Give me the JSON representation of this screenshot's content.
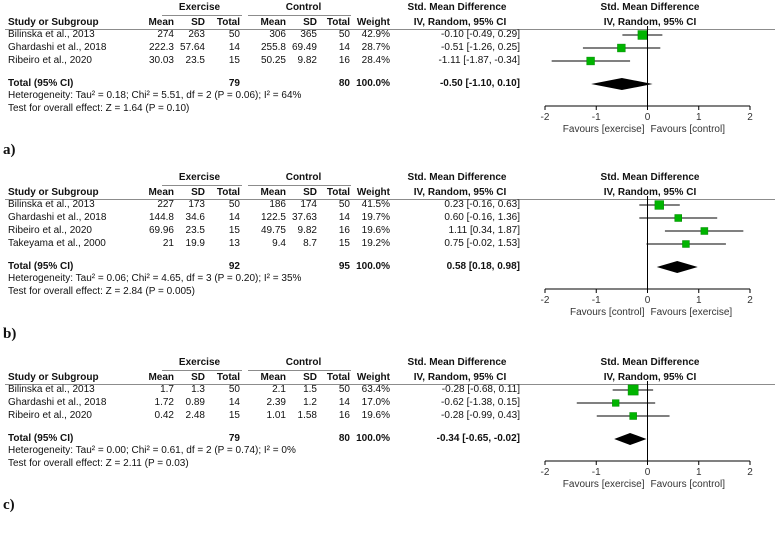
{
  "chart_data": [
    {
      "type": "forest",
      "panel_label": "a)",
      "headers": {
        "group1": "Exercise",
        "group2": "Control",
        "study": "Study or Subgroup",
        "mean": "Mean",
        "sd": "SD",
        "total": "Total",
        "weight": "Weight",
        "smd": "Std. Mean Difference",
        "method": "IV, Random, 95% CI",
        "plot_title": "Std. Mean Difference",
        "plot_method": "IV, Random, 95% CI"
      },
      "studies": [
        {
          "name": "Bilinska et al., 2013",
          "e_mean": "274",
          "e_sd": "263",
          "e_total": "50",
          "c_mean": "306",
          "c_sd": "365",
          "c_total": "50",
          "weight": "42.9%",
          "ci_text": "-0.10 [-0.49, 0.29]",
          "est": -0.1,
          "lo": -0.49,
          "hi": 0.29,
          "w": 42.9
        },
        {
          "name": "Ghardashi et al., 2018",
          "e_mean": "222.3",
          "e_sd": "57.64",
          "e_total": "14",
          "c_mean": "255.8",
          "c_sd": "69.49",
          "c_total": "14",
          "weight": "28.7%",
          "ci_text": "-0.51 [-1.26, 0.25]",
          "est": -0.51,
          "lo": -1.26,
          "hi": 0.25,
          "w": 28.7
        },
        {
          "name": "Ribeiro et al., 2020",
          "e_mean": "30.03",
          "e_sd": "23.5",
          "e_total": "15",
          "c_mean": "50.25",
          "c_sd": "9.82",
          "c_total": "16",
          "weight": "28.4%",
          "ci_text": "-1.11 [-1.87, -0.34]",
          "est": -1.11,
          "lo": -1.87,
          "hi": -0.34,
          "w": 28.4
        }
      ],
      "total": {
        "label": "Total (95% CI)",
        "e_total": "79",
        "c_total": "80",
        "weight": "100.0%",
        "ci_text": "-0.50 [-1.10, 0.10]",
        "est": -0.5,
        "lo": -1.1,
        "hi": 0.1
      },
      "heterogeneity": "Heterogeneity: Tau² = 0.18; Chi² = 5.51, df = 2 (P = 0.06); I² = 64%",
      "overall_test": "Test for overall effect: Z = 1.64 (P = 0.10)",
      "xlim": [
        -2,
        2
      ],
      "ticks": [
        "-2",
        "-1",
        "0",
        "1",
        "2"
      ],
      "favours_left": "Favours [exercise]",
      "favours_right": "Favours [control]"
    },
    {
      "type": "forest",
      "panel_label": "b)",
      "headers": {
        "group1": "Exercise",
        "group2": "Control",
        "study": "Study or Subgroup",
        "mean": "Mean",
        "sd": "SD",
        "total": "Total",
        "weight": "Weight",
        "smd": "Std. Mean Difference",
        "method": "IV, Random, 95% CI",
        "plot_title": "Std. Mean Difference",
        "plot_method": "IV, Random, 95% CI"
      },
      "studies": [
        {
          "name": "Bilinska et al., 2013",
          "e_mean": "227",
          "e_sd": "173",
          "e_total": "50",
          "c_mean": "186",
          "c_sd": "174",
          "c_total": "50",
          "weight": "41.5%",
          "ci_text": "0.23 [-0.16, 0.63]",
          "est": 0.23,
          "lo": -0.16,
          "hi": 0.63,
          "w": 41.5
        },
        {
          "name": "Ghardashi et al., 2018",
          "e_mean": "144.8",
          "e_sd": "34.6",
          "e_total": "14",
          "c_mean": "122.5",
          "c_sd": "37.63",
          "c_total": "14",
          "weight": "19.7%",
          "ci_text": "0.60 [-0.16, 1.36]",
          "est": 0.6,
          "lo": -0.16,
          "hi": 1.36,
          "w": 19.7
        },
        {
          "name": "Ribeiro et al., 2020",
          "e_mean": "69.96",
          "e_sd": "23.5",
          "e_total": "15",
          "c_mean": "49.75",
          "c_sd": "9.82",
          "c_total": "16",
          "weight": "19.6%",
          "ci_text": "1.11 [0.34, 1.87]",
          "est": 1.11,
          "lo": 0.34,
          "hi": 1.87,
          "w": 19.6
        },
        {
          "name": "Takeyama et al., 2000",
          "e_mean": "21",
          "e_sd": "19.9",
          "e_total": "13",
          "c_mean": "9.4",
          "c_sd": "8.7",
          "c_total": "15",
          "weight": "19.2%",
          "ci_text": "0.75 [-0.02, 1.53]",
          "est": 0.75,
          "lo": -0.02,
          "hi": 1.53,
          "w": 19.2
        }
      ],
      "total": {
        "label": "Total (95% CI)",
        "e_total": "92",
        "c_total": "95",
        "weight": "100.0%",
        "ci_text": "0.58 [0.18, 0.98]",
        "est": 0.58,
        "lo": 0.18,
        "hi": 0.98
      },
      "heterogeneity": "Heterogeneity: Tau² = 0.06; Chi² = 4.65, df = 3 (P = 0.20); I² = 35%",
      "overall_test": "Test for overall effect: Z = 2.84 (P = 0.005)",
      "xlim": [
        -2,
        2
      ],
      "ticks": [
        "-2",
        "-1",
        "0",
        "1",
        "2"
      ],
      "favours_left": "Favours [control]",
      "favours_right": "Favours [exercise]"
    },
    {
      "type": "forest",
      "panel_label": "c)",
      "headers": {
        "group1": "Exercise",
        "group2": "Control",
        "study": "Study or Subgroup",
        "mean": "Mean",
        "sd": "SD",
        "total": "Total",
        "weight": "Weight",
        "smd": "Std. Mean Difference",
        "method": "IV, Random, 95% CI",
        "plot_title": "Std. Mean Difference",
        "plot_method": "IV, Random, 95% CI"
      },
      "studies": [
        {
          "name": "Bilinska et al., 2013",
          "e_mean": "1.7",
          "e_sd": "1.3",
          "e_total": "50",
          "c_mean": "2.1",
          "c_sd": "1.5",
          "c_total": "50",
          "weight": "63.4%",
          "ci_text": "-0.28 [-0.68, 0.11]",
          "est": -0.28,
          "lo": -0.68,
          "hi": 0.11,
          "w": 63.4
        },
        {
          "name": "Ghardashi et al., 2018",
          "e_mean": "1.72",
          "e_sd": "0.89",
          "e_total": "14",
          "c_mean": "2.39",
          "c_sd": "1.2",
          "c_total": "14",
          "weight": "17.0%",
          "ci_text": "-0.62 [-1.38, 0.15]",
          "est": -0.62,
          "lo": -1.38,
          "hi": 0.15,
          "w": 17.0
        },
        {
          "name": "Ribeiro et al., 2020",
          "e_mean": "0.42",
          "e_sd": "2.48",
          "e_total": "15",
          "c_mean": "1.01",
          "c_sd": "1.58",
          "c_total": "16",
          "weight": "19.6%",
          "ci_text": "-0.28 [-0.99, 0.43]",
          "est": -0.28,
          "lo": -0.99,
          "hi": 0.43,
          "w": 19.6
        }
      ],
      "total": {
        "label": "Total (95% CI)",
        "e_total": "79",
        "c_total": "80",
        "weight": "100.0%",
        "ci_text": "-0.34 [-0.65, -0.02]",
        "est": -0.34,
        "lo": -0.65,
        "hi": -0.02
      },
      "heterogeneity": "Heterogeneity: Tau² = 0.00; Chi² = 0.61, df = 2 (P = 0.74); I² = 0%",
      "overall_test": "Test for overall effect: Z = 2.11 (P = 0.03)",
      "xlim": [
        -2,
        2
      ],
      "ticks": [
        "-2",
        "-1",
        "0",
        "1",
        "2"
      ],
      "favours_left": "Favours [exercise]",
      "favours_right": "Favours [control]"
    }
  ],
  "colors": {
    "square": "#00b400",
    "square_edge": "#008a00",
    "line": "#000000",
    "rule": "#8c8c8c"
  }
}
